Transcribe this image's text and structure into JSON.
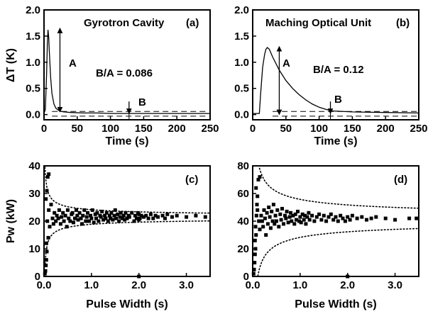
{
  "chart_data": [
    {
      "id": "a",
      "type": "line",
      "panel_label": "(a)",
      "title": "Gyrotron Cavity",
      "xlabel": "Time (s)",
      "ylabel": "ΔT (K)",
      "xlim": [
        0,
        250
      ],
      "ylim": [
        -0.1,
        2.0
      ],
      "x_ticks": [
        "0",
        "50",
        "100",
        "150",
        "200",
        "250"
      ],
      "y_ticks": [
        "0.0",
        "0.5",
        "1.0",
        "1.5",
        "2.0"
      ],
      "ratio_text": "B/A = 0.086",
      "annotations": {
        "A": "A",
        "B": "B"
      },
      "series": [
        {
          "x": [
            0,
            2,
            4,
            5,
            6,
            7,
            8,
            10,
            12,
            15,
            18,
            22,
            26,
            30,
            40,
            60,
            80,
            100,
            130,
            160,
            200,
            250
          ],
          "y": [
            0.02,
            0.1,
            0.8,
            1.35,
            1.62,
            1.48,
            1.2,
            0.7,
            0.4,
            0.2,
            0.12,
            0.08,
            0.06,
            0.05,
            0.04,
            0.03,
            0.03,
            0.02,
            0.02,
            0.02,
            0.02,
            0.02
          ]
        }
      ],
      "arrow_A": {
        "x": 24,
        "y_from": 0.05,
        "y_to": 1.65
      },
      "arrow_B": {
        "x": 128,
        "y_from": 0.25,
        "y_to": 0.02
      },
      "baseline_band": [
        -0.03,
        0.06
      ]
    },
    {
      "id": "b",
      "type": "line",
      "panel_label": "(b)",
      "title": "Maching Optical Unit",
      "xlabel": "Time (s)",
      "ylabel": "",
      "xlim": [
        0,
        250
      ],
      "ylim": [
        -0.1,
        2.0
      ],
      "x_ticks": [
        "0",
        "50",
        "100",
        "150",
        "200",
        "250"
      ],
      "y_ticks": [
        "0.0",
        "0.5",
        "1.0",
        "1.5",
        "2.0"
      ],
      "ratio_text": "B/A = 0.12",
      "annotations": {
        "A": "A",
        "B": "B"
      },
      "series": [
        {
          "x": [
            0,
            10,
            12,
            15,
            18,
            20,
            22,
            25,
            30,
            40,
            50,
            60,
            70,
            80,
            90,
            100,
            110,
            120,
            150,
            200,
            250
          ],
          "y": [
            0.02,
            0.02,
            0.4,
            0.9,
            1.15,
            1.25,
            1.28,
            1.25,
            1.1,
            0.85,
            0.65,
            0.5,
            0.38,
            0.28,
            0.2,
            0.14,
            0.1,
            0.07,
            0.05,
            0.04,
            0.03
          ]
        }
      ],
      "arrow_A": {
        "x": 40,
        "y_from": 0.0,
        "y_to": 1.3
      },
      "arrow_B": {
        "x": 117,
        "y_from": 0.25,
        "y_to": 0.02
      },
      "baseline_band": [
        -0.03,
        0.06
      ]
    },
    {
      "id": "c",
      "type": "scatter",
      "panel_label": "(c)",
      "xlabel": "Pulse Width (s)",
      "ylabel": "Pw (kW)",
      "xlim": [
        0,
        3.5
      ],
      "ylim": [
        0,
        40
      ],
      "x_ticks": [
        "0.0",
        "1.0",
        "2.0",
        "3.0"
      ],
      "y_ticks": [
        "0",
        "10",
        "20",
        "30",
        "40"
      ],
      "center": 21.5,
      "envelope_k": 1.2,
      "points": [
        [
          0.02,
          1
        ],
        [
          0.03,
          2
        ],
        [
          0.04,
          4
        ],
        [
          0.05,
          6
        ],
        [
          0.06,
          9
        ],
        [
          0.05,
          12
        ],
        [
          0.07,
          20
        ],
        [
          0.08,
          36
        ],
        [
          0.1,
          37
        ],
        [
          0.04,
          28
        ],
        [
          0.06,
          31
        ],
        [
          0.09,
          14
        ],
        [
          0.12,
          18
        ],
        [
          0.1,
          24
        ],
        [
          0.15,
          26
        ],
        [
          0.18,
          21
        ],
        [
          0.2,
          19
        ],
        [
          0.22,
          23
        ],
        [
          0.25,
          20
        ],
        [
          0.27,
          22
        ],
        [
          0.3,
          21
        ],
        [
          0.32,
          24
        ],
        [
          0.35,
          19
        ],
        [
          0.37,
          21.5
        ],
        [
          0.4,
          23
        ],
        [
          0.42,
          20
        ],
        [
          0.45,
          22
        ],
        [
          0.48,
          18
        ],
        [
          0.5,
          24
        ],
        [
          0.52,
          21
        ],
        [
          0.55,
          20
        ],
        [
          0.58,
          22.5
        ],
        [
          0.6,
          23
        ],
        [
          0.62,
          19.5
        ],
        [
          0.65,
          21
        ],
        [
          0.68,
          24
        ],
        [
          0.7,
          22
        ],
        [
          0.72,
          20.5
        ],
        [
          0.75,
          23
        ],
        [
          0.78,
          21
        ],
        [
          0.8,
          19
        ],
        [
          0.82,
          22
        ],
        [
          0.85,
          24
        ],
        [
          0.88,
          20
        ],
        [
          0.9,
          21.5
        ],
        [
          0.92,
          23
        ],
        [
          0.95,
          20
        ],
        [
          0.98,
          22
        ],
        [
          1.0,
          21
        ],
        [
          1.02,
          24
        ],
        [
          1.05,
          19.5
        ],
        [
          1.08,
          22.5
        ],
        [
          1.1,
          21
        ],
        [
          1.12,
          23
        ],
        [
          1.15,
          20
        ],
        [
          1.18,
          22
        ],
        [
          1.2,
          21.5
        ],
        [
          1.22,
          23.5
        ],
        [
          1.25,
          20.5
        ],
        [
          1.28,
          22
        ],
        [
          1.3,
          21
        ],
        [
          1.32,
          23
        ],
        [
          1.35,
          20
        ],
        [
          1.38,
          22
        ],
        [
          1.4,
          21
        ],
        [
          1.42,
          23
        ],
        [
          1.45,
          20.5
        ],
        [
          1.48,
          22
        ],
        [
          1.5,
          24
        ],
        [
          1.52,
          21
        ],
        [
          1.55,
          22.5
        ],
        [
          1.58,
          20
        ],
        [
          1.6,
          21.5
        ],
        [
          1.62,
          23
        ],
        [
          1.65,
          21
        ],
        [
          1.68,
          22
        ],
        [
          1.7,
          20.5
        ],
        [
          1.72,
          23
        ],
        [
          1.75,
          21
        ],
        [
          1.78,
          22
        ],
        [
          1.8,
          21.5
        ],
        [
          1.85,
          23
        ],
        [
          1.9,
          20
        ],
        [
          1.92,
          22
        ],
        [
          1.95,
          21
        ],
        [
          1.98,
          23
        ],
        [
          2.0,
          20.5
        ],
        [
          2.0,
          22.5
        ],
        [
          2.02,
          21
        ],
        [
          2.05,
          22
        ],
        [
          2.1,
          21.5
        ],
        [
          2.15,
          22
        ],
        [
          2.2,
          21
        ],
        [
          2.25,
          22.5
        ],
        [
          2.3,
          21
        ],
        [
          2.35,
          22
        ],
        [
          2.4,
          21.5
        ],
        [
          2.5,
          22
        ],
        [
          2.55,
          21
        ],
        [
          2.6,
          22.5
        ],
        [
          2.7,
          21.5
        ],
        [
          2.8,
          22
        ],
        [
          3.0,
          21.5
        ],
        [
          3.2,
          22
        ],
        [
          3.4,
          21.5
        ],
        [
          2.0,
          0
        ]
      ]
    },
    {
      "id": "d",
      "type": "scatter",
      "panel_label": "(d)",
      "xlabel": "Pulse Width (s)",
      "ylabel": "",
      "xlim": [
        0,
        3.5
      ],
      "ylim": [
        0,
        80
      ],
      "x_ticks": [
        "0.0",
        "1.0",
        "2.0",
        "3.0"
      ],
      "y_ticks": [
        "0",
        "20",
        "40",
        "60",
        "80"
      ],
      "center": 42,
      "envelope_k": 3.2,
      "points": [
        [
          0.02,
          2
        ],
        [
          0.03,
          5
        ],
        [
          0.04,
          10
        ],
        [
          0.05,
          16
        ],
        [
          0.06,
          20
        ],
        [
          0.05,
          26
        ],
        [
          0.07,
          30
        ],
        [
          0.06,
          36
        ],
        [
          0.08,
          44
        ],
        [
          0.09,
          52
        ],
        [
          0.1,
          58
        ],
        [
          0.07,
          64
        ],
        [
          0.12,
          70
        ],
        [
          0.15,
          72
        ],
        [
          0.1,
          48
        ],
        [
          0.13,
          40
        ],
        [
          0.15,
          34
        ],
        [
          0.18,
          44
        ],
        [
          0.2,
          40
        ],
        [
          0.22,
          36
        ],
        [
          0.24,
          48
        ],
        [
          0.26,
          42
        ],
        [
          0.28,
          30
        ],
        [
          0.3,
          46
        ],
        [
          0.32,
          38
        ],
        [
          0.34,
          50
        ],
        [
          0.36,
          43
        ],
        [
          0.38,
          35
        ],
        [
          0.4,
          47
        ],
        [
          0.42,
          40
        ],
        [
          0.44,
          52
        ],
        [
          0.46,
          38
        ],
        [
          0.48,
          44
        ],
        [
          0.5,
          40
        ],
        [
          0.52,
          48
        ],
        [
          0.55,
          36
        ],
        [
          0.58,
          45
        ],
        [
          0.6,
          41
        ],
        [
          0.62,
          49
        ],
        [
          0.65,
          38
        ],
        [
          0.68,
          44
        ],
        [
          0.7,
          42
        ],
        [
          0.72,
          47
        ],
        [
          0.75,
          39
        ],
        [
          0.78,
          43
        ],
        [
          0.8,
          46
        ],
        [
          0.82,
          40
        ],
        [
          0.85,
          44
        ],
        [
          0.88,
          38
        ],
        [
          0.9,
          45
        ],
        [
          0.92,
          41
        ],
        [
          0.95,
          47
        ],
        [
          0.98,
          40
        ],
        [
          1.0,
          43
        ],
        [
          1.02,
          39
        ],
        [
          1.05,
          45
        ],
        [
          1.08,
          41
        ],
        [
          1.1,
          44
        ],
        [
          1.12,
          38
        ],
        [
          1.15,
          43
        ],
        [
          1.18,
          46
        ],
        [
          1.2,
          41
        ],
        [
          1.25,
          44
        ],
        [
          1.3,
          40
        ],
        [
          1.35,
          43
        ],
        [
          1.4,
          45
        ],
        [
          1.45,
          41
        ],
        [
          1.5,
          44
        ],
        [
          1.55,
          40
        ],
        [
          1.6,
          43
        ],
        [
          1.65,
          45
        ],
        [
          1.7,
          41
        ],
        [
          1.75,
          43
        ],
        [
          1.8,
          40
        ],
        [
          1.85,
          44
        ],
        [
          1.9,
          42
        ],
        [
          1.95,
          40
        ],
        [
          2.0,
          43
        ],
        [
          2.05,
          41
        ],
        [
          2.1,
          44
        ],
        [
          2.2,
          42
        ],
        [
          2.3,
          43
        ],
        [
          2.4,
          41
        ],
        [
          2.5,
          42
        ],
        [
          2.6,
          43
        ],
        [
          2.8,
          42
        ],
        [
          3.0,
          41
        ],
        [
          3.3,
          42
        ],
        [
          3.45,
          42
        ],
        [
          2.0,
          0
        ]
      ]
    }
  ]
}
